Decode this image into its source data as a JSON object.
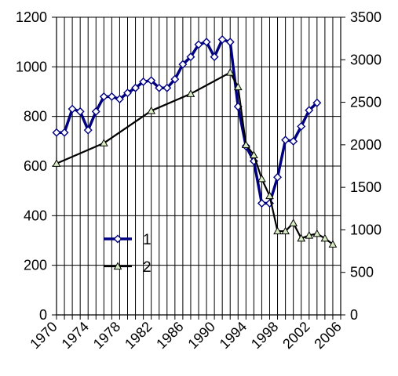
{
  "chart_data": {
    "type": "line",
    "title": "",
    "xlabel": "",
    "ylabel_left": "",
    "ylabel_right": "",
    "xlim": [
      1970,
      2006
    ],
    "x_ticks": [
      1970,
      1974,
      1978,
      1982,
      1986,
      1990,
      1994,
      1998,
      2002,
      2006
    ],
    "x_tick_labels": [
      "1970",
      "1974",
      "1978",
      "1982",
      "1986",
      "1990",
      "1994",
      "1998",
      "2002",
      "2006"
    ],
    "ylim_left": [
      0,
      1200
    ],
    "y_ticks_left": [
      0,
      200,
      400,
      600,
      800,
      1000,
      1200
    ],
    "y_tick_labels_left": [
      "0",
      "200",
      "400",
      "600",
      "800",
      "1000",
      "1200"
    ],
    "ylim_right": [
      0,
      3500
    ],
    "y_ticks_right": [
      0,
      500,
      1000,
      1500,
      2000,
      2500,
      3000,
      3500
    ],
    "y_tick_labels_right": [
      "0",
      "500",
      "1000",
      "1500",
      "2000",
      "2500",
      "3000",
      "3500"
    ],
    "grid": true,
    "legend_position": "lower-left",
    "series": [
      {
        "name": "1",
        "axis": "left",
        "color": "#000080",
        "marker": "diamond",
        "x": [
          1970,
          1971,
          1972,
          1973,
          1974,
          1975,
          1976,
          1977,
          1978,
          1979,
          1980,
          1981,
          1982,
          1983,
          1984,
          1985,
          1986,
          1987,
          1988,
          1989,
          1990,
          1991,
          1992,
          1993,
          1994,
          1995,
          1996,
          1997,
          1998,
          1999,
          2000,
          2001,
          2002,
          2003,
          2004
        ],
        "values": [
          735,
          735,
          830,
          820,
          745,
          820,
          880,
          880,
          870,
          895,
          915,
          940,
          945,
          915,
          915,
          950,
          1010,
          1040,
          1090,
          1100,
          1040,
          1110,
          1100,
          840,
          680,
          620,
          450,
          450,
          555,
          705,
          700,
          760,
          825,
          855,
          null
        ]
      },
      {
        "name": "2",
        "axis": "right",
        "color": "#000000",
        "marker": "triangle",
        "x": [
          1970,
          1976,
          1982,
          1987,
          1992,
          1993,
          1994,
          1995,
          1996,
          1997,
          1998,
          1999,
          2000,
          2001,
          2002,
          2003,
          2004,
          2005
        ],
        "values": [
          1780,
          2020,
          2400,
          2600,
          2850,
          2680,
          2000,
          1880,
          1600,
          1400,
          985,
          985,
          1080,
          900,
          935,
          955,
          900,
          830
        ]
      }
    ]
  }
}
